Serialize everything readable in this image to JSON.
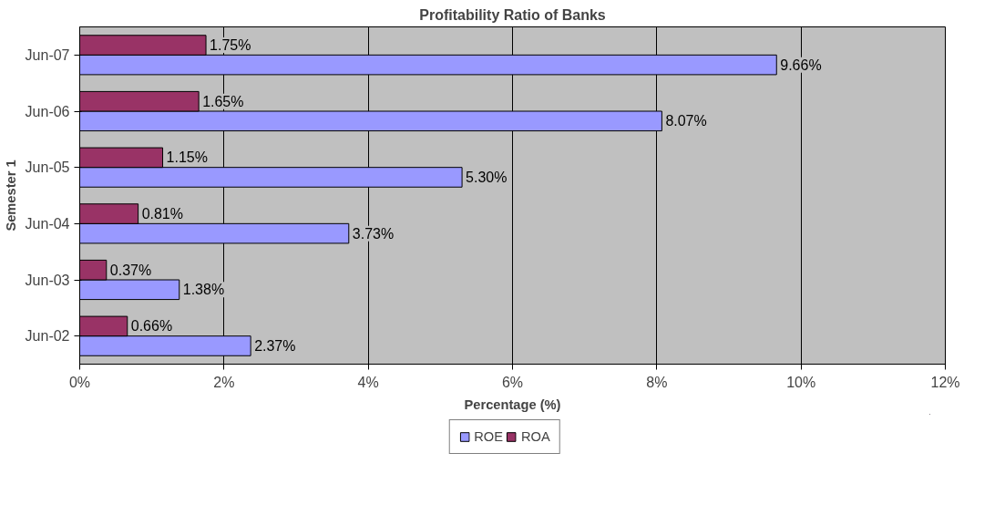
{
  "chart_data": {
    "type": "bar",
    "orientation": "horizontal",
    "title": "Profitability Ratio of Banks",
    "xlabel": "Percentage (%)",
    "ylabel": "Semester 1",
    "categories": [
      "Jun-07",
      "Jun-06",
      "Jun-05",
      "Jun-04",
      "Jun-03",
      "Jun-02"
    ],
    "series": [
      {
        "name": "ROE",
        "color": "#9999ff",
        "values": [
          9.66,
          8.07,
          5.3,
          3.73,
          1.38,
          2.37
        ],
        "value_labels": [
          "9.66%",
          "8.07%",
          "5.30%",
          "3.73%",
          "1.38%",
          "2.37%"
        ]
      },
      {
        "name": "ROA",
        "color": "#993366",
        "values": [
          1.75,
          1.65,
          1.15,
          0.81,
          0.37,
          0.66
        ],
        "value_labels": [
          "1.75%",
          "1.65%",
          "1.15%",
          "0.81%",
          "0.37%",
          "0.66%"
        ]
      }
    ],
    "xlim": [
      0,
      12
    ],
    "xticks": [
      {
        "value": 0,
        "label": "0%"
      },
      {
        "value": 2,
        "label": "2%"
      },
      {
        "value": 4,
        "label": "4%"
      },
      {
        "value": 6,
        "label": "6%"
      },
      {
        "value": 8,
        "label": "8%"
      },
      {
        "value": 10,
        "label": "10%"
      },
      {
        "value": 12,
        "label": "12%"
      }
    ],
    "grid": "x",
    "legend": "bottom"
  }
}
